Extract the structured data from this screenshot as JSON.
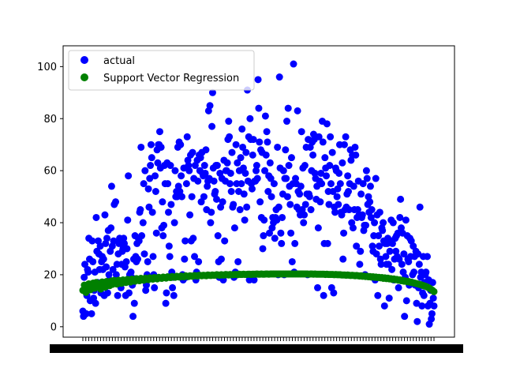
{
  "chart_data": {
    "type": "scatter",
    "title": "",
    "xlabel": "",
    "ylabel": "",
    "ylim": [
      -4,
      108
    ],
    "yticks": [
      0,
      20,
      40,
      60,
      80,
      100
    ],
    "legend_position": "upper-left",
    "grid": false,
    "x_tick_labels_note": "x tick labels are overlapping and unreadable",
    "series": [
      {
        "name": "actual",
        "color": "#0000ff",
        "marker": "circle",
        "values": [
          6,
          4,
          19,
          24,
          14,
          5,
          12,
          22,
          21,
          34,
          26,
          10,
          15,
          5,
          33,
          25,
          11,
          14,
          21,
          9,
          42,
          29,
          17,
          33,
          28,
          22,
          31,
          13,
          25,
          27,
          22,
          26,
          12,
          43,
          32,
          23,
          34,
          13,
          37,
          20,
          18,
          29,
          38,
          54,
          31,
          22,
          33,
          47,
          18,
          48,
          20,
          24,
          12,
          28,
          32,
          34,
          16,
          15,
          24,
          29,
          30,
          34,
          32,
          23,
          12,
          25,
          30,
          41,
          58,
          13,
          20,
          18,
          21,
          19,
          16,
          4,
          26,
          9,
          35,
          27,
          25,
          32,
          26,
          34,
          33,
          44,
          45,
          69,
          35,
          18,
          40,
          55,
          28,
          60,
          14,
          16,
          20,
          25,
          53,
          46,
          57,
          62,
          70,
          65,
          44,
          27,
          20,
          15,
          58,
          52,
          36,
          68,
          63,
          70,
          70,
          75,
          61,
          69,
          38,
          48,
          35,
          39,
          62,
          55,
          9,
          13,
          63,
          55,
          44,
          31,
          27,
          62,
          47,
          21,
          15,
          19,
          12,
          40,
          60,
          50,
          52,
          50,
          69,
          54,
          71,
          52,
          70,
          58,
          50,
          20,
          18,
          61,
          26,
          33,
          19,
          55,
          73,
          64,
          62,
          60,
          43,
          66,
          33,
          50,
          67,
          34,
          57,
          27,
          62,
          18,
          21,
          64,
          56,
          25,
          66,
          60,
          65,
          48,
          67,
          59,
          58,
          50,
          62,
          59,
          68,
          45,
          54,
          56,
          83,
          57,
          85,
          40,
          44,
          77,
          90,
          61,
          56,
          51,
          52,
          62,
          49,
          62,
          35,
          25,
          19,
          59,
          46,
          26,
          57,
          48,
          18,
          64,
          33,
          56,
          60,
          60,
          63,
          72,
          79,
          73,
          55,
          59,
          52,
          67,
          46,
          47,
          19,
          38,
          21,
          70,
          55,
          63,
          25,
          52,
          60,
          45,
          65,
          55,
          76,
          69,
          61,
          51,
          41,
          59,
          67,
          46,
          91,
          56,
          73,
          18,
          80,
          72,
          55,
          53,
          66,
          72,
          18,
          56,
          56,
          60,
          62,
          57,
          95,
          84,
          71,
          48,
          68,
          42,
          67,
          30,
          35,
          41,
          60,
          81,
          66,
          75,
          71,
          52,
          58,
          36,
          63,
          57,
          50,
          38,
          42,
          40,
          55,
          34,
          42,
          45,
          41,
          69,
          20,
          46,
          96,
          61,
          36,
          32,
          42,
          51,
          60,
          20,
          57,
          68,
          57,
          79,
          50,
          84,
          62,
          54,
          47,
          36,
          65,
          25,
          55,
          101,
          21,
          32,
          57,
          55,
          46,
          83,
          52,
          45,
          51,
          43,
          54,
          75,
          45,
          61,
          40,
          43,
          62,
          47,
          69,
          51,
          20,
          72,
          51,
          50,
          69,
          45,
          60,
          71,
          66,
          74,
          72,
          59,
          57,
          49,
          54,
          15,
          38,
          73,
          56,
          48,
          59,
          55,
          79,
          71,
          12,
          32,
          65,
          61,
          58,
          78,
          32,
          52,
          47,
          62,
          73,
          55,
          15,
          67,
          52,
          13,
          46,
          44,
          61,
          60,
          50,
          53,
          47,
          59,
          70,
          55,
          44,
          43,
          63,
          26,
          36,
          70,
          45,
          73,
          46,
          51,
          58,
          52,
          45,
          55,
          68,
          64,
          40,
          66,
          38,
          54,
          45,
          69,
          66,
          31,
          42,
          45,
          56,
          43,
          24,
          29,
          51,
          42,
          43,
          55,
          37,
          39,
          20,
          39,
          60,
          57,
          47,
          50,
          44,
          48,
          54,
          42,
          45,
          31,
          29,
          35,
          40,
          18,
          57,
          28,
          43,
          12,
          35,
          31,
          44,
          26,
          24,
          38,
          37,
          40,
          33,
          8,
          32,
          27,
          24,
          32,
          34,
          24,
          11,
          29,
          33,
          41,
          22,
          32,
          40,
          18,
          26,
          34,
          29,
          35,
          27,
          36,
          15,
          26,
          42,
          49,
          38,
          24,
          36,
          21,
          28,
          4,
          19,
          41,
          10,
          35,
          26,
          25,
          16,
          34,
          27,
          33,
          17,
          20,
          31,
          21,
          27,
          16,
          29,
          9,
          2,
          28,
          15,
          24,
          46,
          19,
          21,
          8,
          13,
          27,
          12,
          17,
          20,
          21,
          17,
          27,
          8,
          18,
          1,
          9,
          14,
          3,
          5,
          17,
          11,
          8
        ]
      },
      {
        "name": "Support Vector Regression",
        "color": "#008000",
        "marker": "circle",
        "values": [
          14.0,
          16.0,
          13.2,
          15.5,
          16.5,
          14.2,
          15.8,
          16.8,
          14.8,
          17.0,
          15.5,
          16.2,
          14.5,
          17.2,
          16.0,
          15.2,
          17.4,
          16.6,
          15.8,
          17.6,
          16.3,
          17.8,
          16.9,
          16.4,
          17.9,
          17.2,
          16.7,
          18.0,
          17.5,
          17.0,
          18.2,
          17.7,
          17.2,
          18.3,
          17.9,
          17.5,
          18.5,
          18.0,
          17.7,
          18.6,
          18.2,
          17.9,
          18.7,
          18.4,
          18.1,
          18.8,
          18.5,
          18.3,
          18.9,
          18.7,
          18.4,
          19.0,
          18.8,
          18.6,
          19.1,
          18.9,
          18.7,
          19.2,
          19.0,
          18.9,
          19.3,
          19.1,
          19.0,
          19.4,
          19.2,
          19.1,
          19.5,
          19.3,
          19.2,
          19.6,
          19.4,
          19.3,
          19.6,
          19.5,
          19.4,
          19.7,
          19.6,
          19.5,
          19.8,
          19.7,
          19.6,
          19.8,
          19.7,
          19.6,
          19.9,
          19.8,
          19.7,
          19.9,
          19.8,
          19.8,
          20.0,
          19.9,
          19.8,
          20.0,
          19.9,
          19.9,
          20.1,
          20.0,
          19.9,
          20.1,
          20.0,
          20.0,
          20.1,
          20.1,
          20.0,
          20.2,
          20.1,
          20.1,
          20.2,
          20.1,
          20.1,
          20.2,
          20.2,
          20.1,
          20.2,
          20.2,
          20.2,
          20.3,
          20.2,
          20.2,
          20.3,
          20.2,
          20.2,
          20.3,
          20.3,
          20.2,
          20.3,
          20.3,
          20.3,
          20.3,
          20.3,
          20.3,
          20.3,
          20.3,
          20.3,
          20.3,
          20.3,
          20.3,
          20.3,
          20.3,
          20.3,
          20.3,
          20.3,
          20.3,
          20.3,
          20.3,
          20.3,
          20.3,
          20.3,
          20.3,
          20.3,
          20.3,
          20.2,
          20.3,
          20.3,
          20.2,
          20.3,
          20.2,
          20.2,
          20.2,
          20.2,
          20.2,
          20.2,
          20.1,
          20.2,
          20.1,
          20.1,
          20.1,
          20.1,
          20.0,
          20.1,
          20.0,
          20.0,
          20.0,
          19.9,
          19.9,
          19.9,
          19.8,
          19.9,
          19.8,
          19.7,
          19.8,
          19.7,
          19.6,
          19.7,
          19.6,
          19.5,
          19.6,
          19.4,
          19.5,
          19.3,
          19.4,
          19.2,
          19.3,
          19.1,
          19.2,
          19.0,
          19.1,
          18.9,
          19.0,
          18.8,
          18.9,
          18.6,
          18.8,
          18.5,
          18.7,
          18.4,
          18.5,
          18.2,
          18.4,
          18.1,
          18.2,
          17.9,
          18.0,
          17.7,
          17.8,
          17.5,
          17.6,
          17.3,
          17.4,
          17.1,
          17.1,
          16.9,
          16.8,
          16.6,
          16.5,
          16.3,
          16.2,
          16.0,
          15.8,
          15.6,
          15.4,
          15.1,
          14.8,
          14.4,
          14.0,
          13.5
        ]
      }
    ]
  }
}
